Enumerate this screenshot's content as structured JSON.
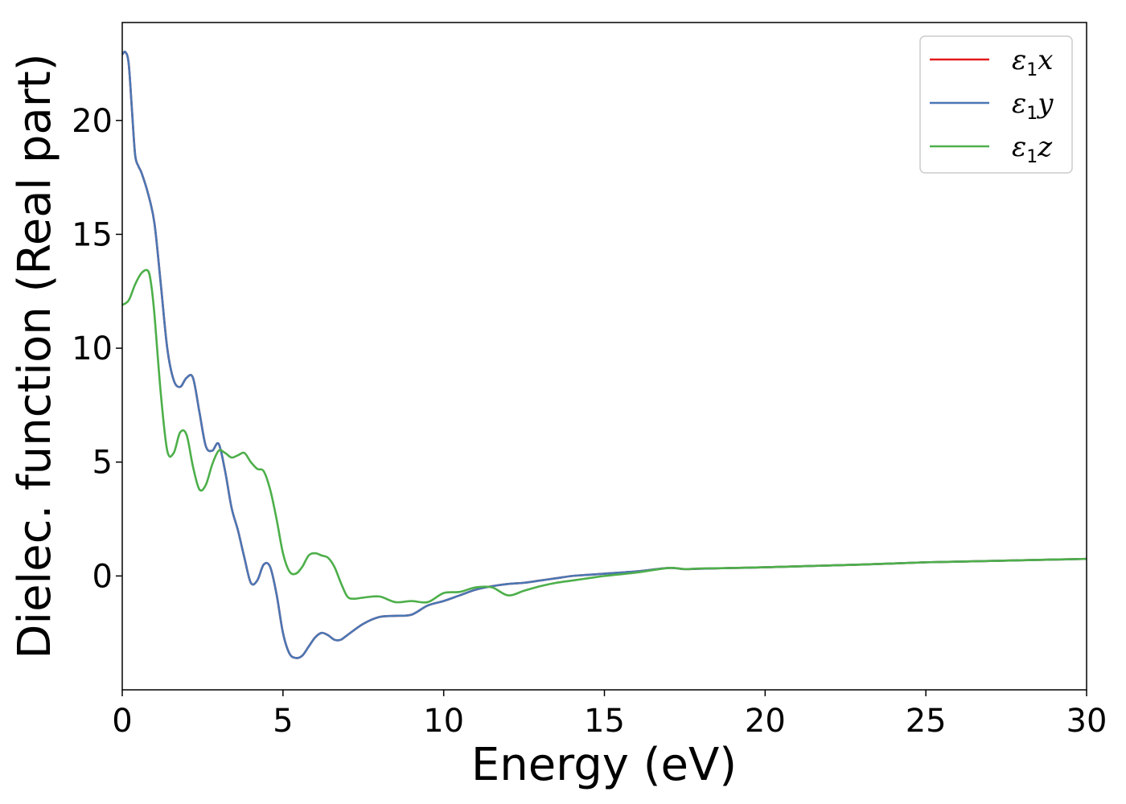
{
  "chart_data": {
    "type": "line",
    "xlabel": "Energy (eV)",
    "ylabel": "Dielec. function (Real part)",
    "xlim": [
      0,
      30
    ],
    "ylim": [
      -5.0,
      24.3
    ],
    "xticks": [
      0,
      5,
      10,
      15,
      20,
      25,
      30
    ],
    "yticks": [
      0,
      5,
      10,
      15,
      20
    ],
    "grid": false,
    "legend_position": "top-right",
    "series": [
      {
        "name": "ε₁x",
        "legend_main": "ε",
        "legend_sub": "1",
        "legend_var": "x",
        "color": "#e41a1c",
        "x": [
          0,
          0.1,
          0.2,
          0.3,
          0.4,
          0.5,
          0.6,
          0.8,
          1.0,
          1.2,
          1.4,
          1.6,
          1.8,
          2.0,
          2.2,
          2.4,
          2.6,
          2.8,
          3.0,
          3.2,
          3.4,
          3.6,
          3.8,
          4.0,
          4.2,
          4.4,
          4.6,
          4.8,
          5.0,
          5.2,
          5.4,
          5.6,
          5.8,
          6.0,
          6.2,
          6.4,
          6.6,
          6.8,
          7.0,
          7.5,
          8.0,
          8.5,
          9.0,
          9.5,
          10.0,
          10.5,
          11.0,
          11.5,
          12.0,
          12.5,
          13.0,
          13.5,
          14.0,
          14.5,
          15.0,
          16.0,
          17.0,
          17.5,
          18.0,
          19.0,
          20.0,
          21.0,
          22.0,
          23.0,
          24.0,
          25.0,
          26.0,
          27.0,
          28.0,
          29.0,
          30.0
        ],
        "y": [
          22.9,
          23.0,
          22.5,
          20.5,
          18.5,
          18.0,
          17.7,
          16.8,
          15.5,
          12.8,
          10.0,
          8.6,
          8.3,
          8.7,
          8.7,
          7.2,
          5.7,
          5.5,
          5.8,
          4.6,
          3.0,
          2.0,
          0.8,
          -0.3,
          -0.2,
          0.5,
          0.4,
          -0.8,
          -2.5,
          -3.4,
          -3.6,
          -3.5,
          -3.1,
          -2.7,
          -2.5,
          -2.6,
          -2.8,
          -2.8,
          -2.6,
          -2.1,
          -1.8,
          -1.75,
          -1.7,
          -1.3,
          -1.1,
          -0.85,
          -0.6,
          -0.45,
          -0.35,
          -0.3,
          -0.2,
          -0.1,
          0.0,
          0.05,
          0.1,
          0.2,
          0.35,
          0.3,
          0.32,
          0.35,
          0.38,
          0.42,
          0.46,
          0.5,
          0.55,
          0.6,
          0.63,
          0.66,
          0.69,
          0.72,
          0.75
        ]
      },
      {
        "name": "ε₁y",
        "legend_main": "ε",
        "legend_sub": "1",
        "legend_var": "y",
        "color": "#4a77b4",
        "x": [
          0,
          0.1,
          0.2,
          0.3,
          0.4,
          0.5,
          0.6,
          0.8,
          1.0,
          1.2,
          1.4,
          1.6,
          1.8,
          2.0,
          2.2,
          2.4,
          2.6,
          2.8,
          3.0,
          3.2,
          3.4,
          3.6,
          3.8,
          4.0,
          4.2,
          4.4,
          4.6,
          4.8,
          5.0,
          5.2,
          5.4,
          5.6,
          5.8,
          6.0,
          6.2,
          6.4,
          6.6,
          6.8,
          7.0,
          7.5,
          8.0,
          8.5,
          9.0,
          9.5,
          10.0,
          10.5,
          11.0,
          11.5,
          12.0,
          12.5,
          13.0,
          13.5,
          14.0,
          14.5,
          15.0,
          16.0,
          17.0,
          17.5,
          18.0,
          19.0,
          20.0,
          21.0,
          22.0,
          23.0,
          24.0,
          25.0,
          26.0,
          27.0,
          28.0,
          29.0,
          30.0
        ],
        "y": [
          22.9,
          23.0,
          22.5,
          20.5,
          18.5,
          18.0,
          17.7,
          16.8,
          15.5,
          12.8,
          10.0,
          8.6,
          8.3,
          8.7,
          8.7,
          7.2,
          5.7,
          5.5,
          5.8,
          4.6,
          3.0,
          2.0,
          0.8,
          -0.3,
          -0.2,
          0.5,
          0.4,
          -0.8,
          -2.5,
          -3.4,
          -3.6,
          -3.5,
          -3.1,
          -2.7,
          -2.5,
          -2.6,
          -2.8,
          -2.8,
          -2.6,
          -2.1,
          -1.8,
          -1.75,
          -1.7,
          -1.3,
          -1.1,
          -0.85,
          -0.6,
          -0.45,
          -0.35,
          -0.3,
          -0.2,
          -0.1,
          0.0,
          0.05,
          0.1,
          0.2,
          0.35,
          0.3,
          0.32,
          0.35,
          0.38,
          0.42,
          0.46,
          0.5,
          0.55,
          0.6,
          0.63,
          0.66,
          0.69,
          0.72,
          0.75
        ]
      },
      {
        "name": "ε₁z",
        "legend_main": "ε",
        "legend_sub": "1",
        "legend_var": "z",
        "color": "#4daf4a",
        "x": [
          0,
          0.2,
          0.4,
          0.6,
          0.8,
          0.9,
          1.0,
          1.2,
          1.4,
          1.6,
          1.8,
          2.0,
          2.2,
          2.4,
          2.6,
          2.8,
          3.0,
          3.2,
          3.4,
          3.6,
          3.8,
          4.0,
          4.2,
          4.4,
          4.6,
          4.8,
          5.0,
          5.2,
          5.4,
          5.6,
          5.8,
          6.0,
          6.2,
          6.4,
          6.6,
          6.8,
          7.0,
          7.2,
          7.5,
          8.0,
          8.5,
          9.0,
          9.5,
          10.0,
          10.5,
          11.0,
          11.5,
          12.0,
          12.5,
          13.0,
          13.5,
          14.0,
          14.5,
          15.0,
          16.0,
          17.0,
          17.5,
          18.0,
          19.0,
          20.0,
          21.0,
          22.0,
          23.0,
          24.0,
          25.0,
          26.0,
          27.0,
          28.0,
          29.0,
          30.0
        ],
        "y": [
          11.9,
          12.1,
          12.8,
          13.3,
          13.4,
          12.8,
          11.5,
          8.0,
          5.5,
          5.4,
          6.3,
          6.2,
          4.8,
          3.8,
          4.0,
          4.9,
          5.5,
          5.4,
          5.2,
          5.3,
          5.4,
          5.0,
          4.7,
          4.6,
          3.8,
          2.5,
          1.0,
          0.2,
          0.1,
          0.4,
          0.9,
          1.0,
          0.9,
          0.8,
          0.4,
          -0.3,
          -0.9,
          -1.0,
          -0.95,
          -0.9,
          -1.15,
          -1.1,
          -1.15,
          -0.75,
          -0.7,
          -0.5,
          -0.5,
          -0.85,
          -0.65,
          -0.45,
          -0.3,
          -0.2,
          -0.1,
          0.0,
          0.15,
          0.35,
          0.3,
          0.33,
          0.35,
          0.38,
          0.42,
          0.46,
          0.5,
          0.55,
          0.6,
          0.63,
          0.66,
          0.69,
          0.72,
          0.75
        ]
      }
    ]
  }
}
